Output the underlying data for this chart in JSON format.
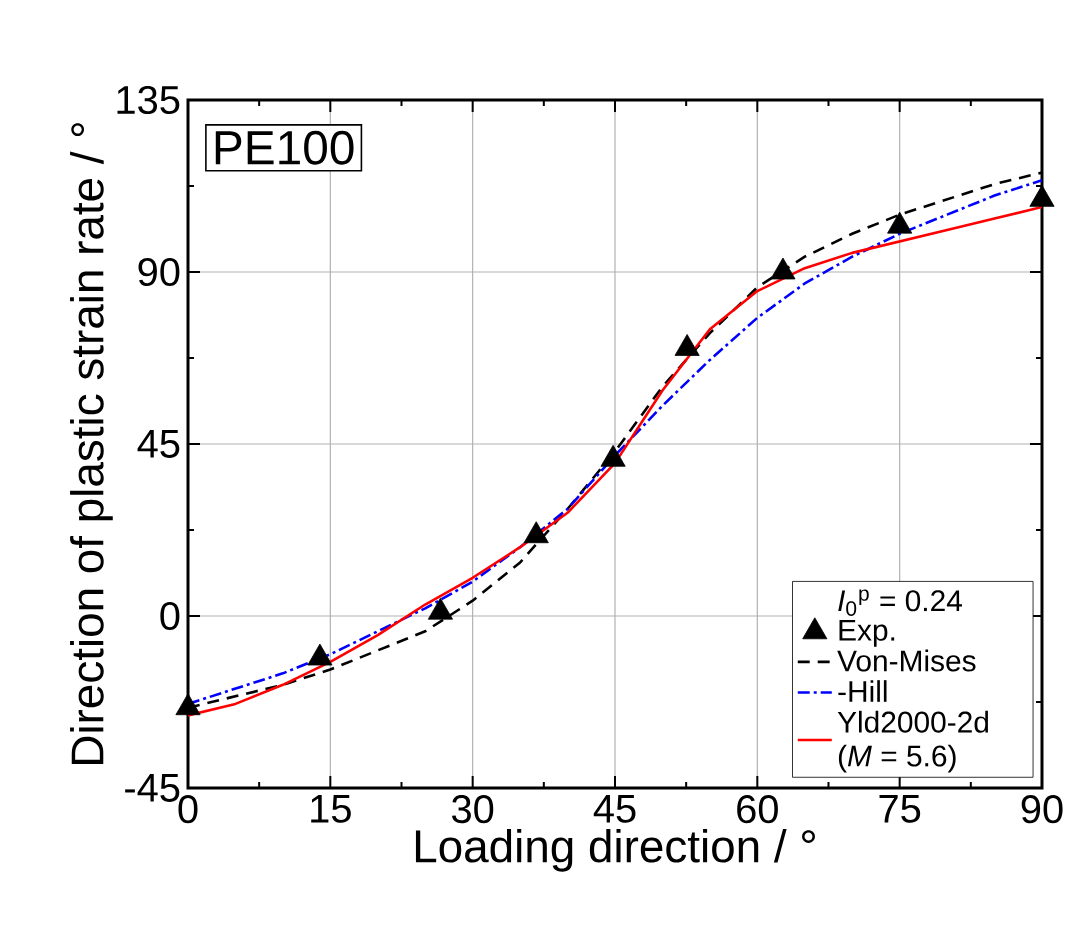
{
  "chart_data": {
    "type": "line",
    "xlabel": "Loading direction    / °",
    "ylabel": "Direction of plastic strain rate    / °",
    "annotations": [
      "PE100"
    ],
    "legend_title": "*I*$_{0}$$^{p}$ = 0.24",
    "xlim": [
      0,
      90
    ],
    "xticks": [
      0,
      15,
      30,
      45,
      60,
      75,
      90
    ],
    "ylim": [
      -45,
      135
    ],
    "yticks": [
      -45,
      0,
      45,
      90,
      135
    ],
    "grid": true,
    "legend": "bottom right",
    "series": [
      {
        "name": "Exp.",
        "type": "scatter",
        "marker": "triangle",
        "color": "#000000",
        "x": [
          0,
          13.9,
          26.6,
          36.7,
          44.8,
          52.6,
          62.7,
          75,
          90
        ],
        "values": [
          -24,
          -11,
          1,
          21,
          41,
          70,
          90,
          102,
          109
        ]
      },
      {
        "name": "Von-Mises",
        "type": "line",
        "line_style": "dashed",
        "color": "#000000",
        "x": [
          0,
          5,
          10,
          15,
          20,
          25,
          30,
          35,
          40,
          45,
          50,
          55,
          60,
          65,
          70,
          75,
          80,
          85,
          90
        ],
        "values": [
          -24,
          -21,
          -18,
          -14,
          -9,
          -4,
          4,
          14,
          28,
          43,
          60,
          74,
          86,
          94,
          100,
          105,
          109,
          113,
          116
        ]
      },
      {
        "name": "-Hill",
        "type": "line",
        "line_style": "dashdot",
        "color": "#0000ff",
        "x": [
          0,
          5,
          10,
          15,
          20,
          25,
          30,
          35,
          40,
          45,
          50,
          55,
          60,
          65,
          70,
          75,
          80,
          85,
          90
        ],
        "values": [
          -23,
          -19,
          -15,
          -10,
          -4,
          2,
          9,
          18,
          28,
          42,
          55,
          67,
          78,
          87,
          94,
          100,
          105,
          110,
          114
        ]
      },
      {
        "name": "Yld2000-2d (*M* =  5.6)",
        "type": "line",
        "line_style": "solid",
        "color": "#ff0000",
        "x": [
          0,
          5,
          10,
          15,
          20,
          25,
          30,
          35,
          40,
          45,
          50,
          55,
          60,
          65,
          70,
          75,
          80,
          85,
          90
        ],
        "values": [
          -26,
          -23,
          -18,
          -12,
          -5,
          3,
          10,
          18,
          27,
          40,
          59,
          75,
          85,
          91,
          95,
          98,
          101,
          104,
          107
        ]
      }
    ]
  }
}
